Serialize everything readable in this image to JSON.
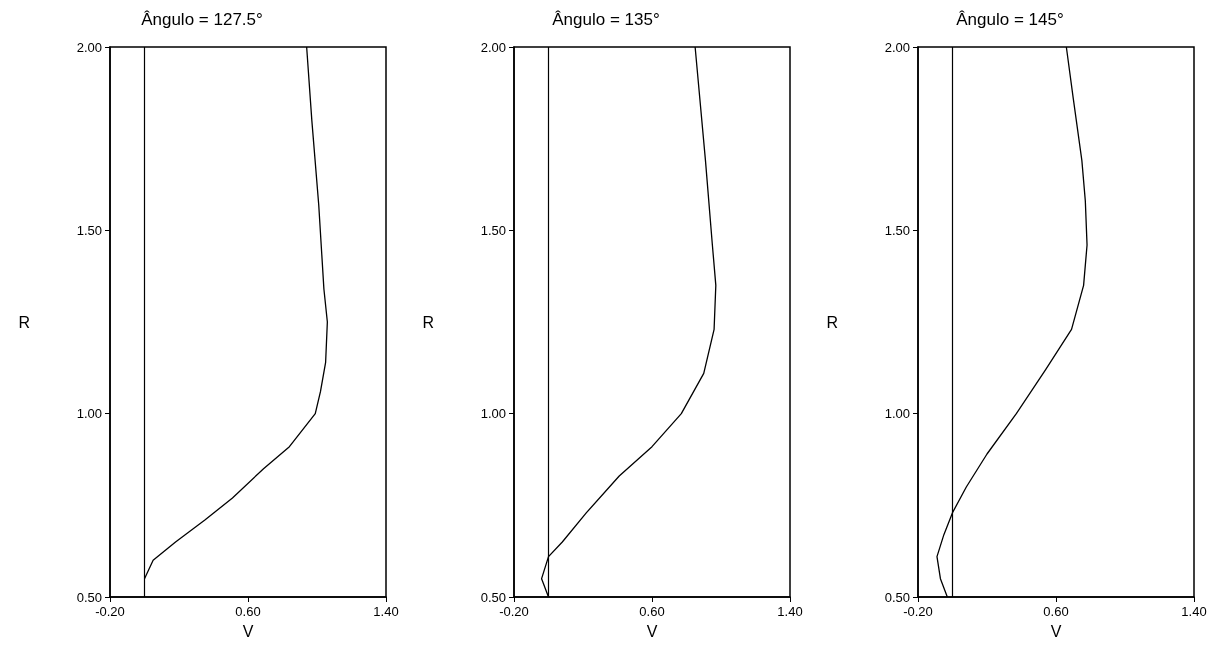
{
  "chart_data": [
    {
      "type": "line",
      "title": "Ângulo = 127.5°",
      "xlabel": "V",
      "ylabel": "R",
      "xlim": [
        -0.2,
        1.4
      ],
      "ylim": [
        0.5,
        2.0
      ],
      "xticks": [
        {
          "value": -0.2,
          "label": "-0.20"
        },
        {
          "value": 0.6,
          "label": "0.60"
        },
        {
          "value": 1.4,
          "label": "1.40"
        }
      ],
      "yticks": [
        {
          "value": 0.5,
          "label": "0.50"
        },
        {
          "value": 1.0,
          "label": "1.00"
        },
        {
          "value": 1.5,
          "label": "1.50"
        },
        {
          "value": 2.0,
          "label": "2.00"
        }
      ],
      "marker": "none",
      "line_style": "solid",
      "ref_lines": [
        {
          "axis": "x",
          "value": 0,
          "color": "#000000"
        }
      ],
      "series": [
        {
          "color": "#000000",
          "x": [
            0.0,
            0.05,
            0.18,
            0.35,
            0.51,
            0.69,
            0.84,
            0.99,
            1.02,
            1.05,
            1.06,
            1.04,
            1.01,
            0.97,
            0.94
          ],
          "values": [
            0.55,
            0.6,
            0.65,
            0.71,
            0.77,
            0.85,
            0.91,
            1.0,
            1.06,
            1.14,
            1.25,
            1.34,
            1.57,
            1.8,
            2.0
          ]
        }
      ]
    },
    {
      "type": "line",
      "title": "Ângulo = 135°",
      "xlabel": "V",
      "ylabel": "R",
      "xlim": [
        -0.2,
        1.4
      ],
      "ylim": [
        0.5,
        2.0
      ],
      "xticks": [
        {
          "value": -0.2,
          "label": "-0.20"
        },
        {
          "value": 0.6,
          "label": "0.60"
        },
        {
          "value": 1.4,
          "label": "1.40"
        }
      ],
      "yticks": [
        {
          "value": 0.5,
          "label": "0.50"
        },
        {
          "value": 1.0,
          "label": "1.00"
        },
        {
          "value": 1.5,
          "label": "1.50"
        },
        {
          "value": 2.0,
          "label": "2.00"
        }
      ],
      "marker": "none",
      "line_style": "solid",
      "ref_lines": [
        {
          "axis": "x",
          "value": 0,
          "color": "#000000"
        }
      ],
      "series": [
        {
          "color": "#000000",
          "x": [
            0.0,
            -0.04,
            0.0,
            0.08,
            0.22,
            0.41,
            0.6,
            0.77,
            0.9,
            0.96,
            0.97,
            0.95,
            0.91,
            0.85
          ],
          "values": [
            0.5,
            0.55,
            0.61,
            0.65,
            0.73,
            0.83,
            0.91,
            1.0,
            1.11,
            1.23,
            1.35,
            1.46,
            1.69,
            2.0
          ]
        }
      ]
    },
    {
      "type": "line",
      "title": "Ângulo = 145°",
      "xlabel": "V",
      "ylabel": "R",
      "xlim": [
        -0.2,
        1.4
      ],
      "ylim": [
        0.5,
        2.0
      ],
      "xticks": [
        {
          "value": -0.2,
          "label": "-0.20"
        },
        {
          "value": 0.6,
          "label": "0.60"
        },
        {
          "value": 1.4,
          "label": "1.40"
        }
      ],
      "yticks": [
        {
          "value": 0.5,
          "label": "0.50"
        },
        {
          "value": 1.0,
          "label": "1.00"
        },
        {
          "value": 1.5,
          "label": "1.50"
        },
        {
          "value": 2.0,
          "label": "2.00"
        }
      ],
      "marker": "none",
      "line_style": "solid",
      "ref_lines": [
        {
          "axis": "x",
          "value": 0,
          "color": "#000000"
        }
      ],
      "series": [
        {
          "color": "#000000",
          "x": [
            -0.03,
            -0.07,
            -0.09,
            -0.05,
            0.0,
            0.08,
            0.2,
            0.37,
            0.54,
            0.69,
            0.76,
            0.78,
            0.77,
            0.75,
            0.7,
            0.66
          ],
          "values": [
            0.5,
            0.55,
            0.61,
            0.67,
            0.73,
            0.8,
            0.89,
            1.0,
            1.12,
            1.23,
            1.35,
            1.46,
            1.58,
            1.69,
            1.86,
            2.0
          ]
        }
      ]
    }
  ]
}
